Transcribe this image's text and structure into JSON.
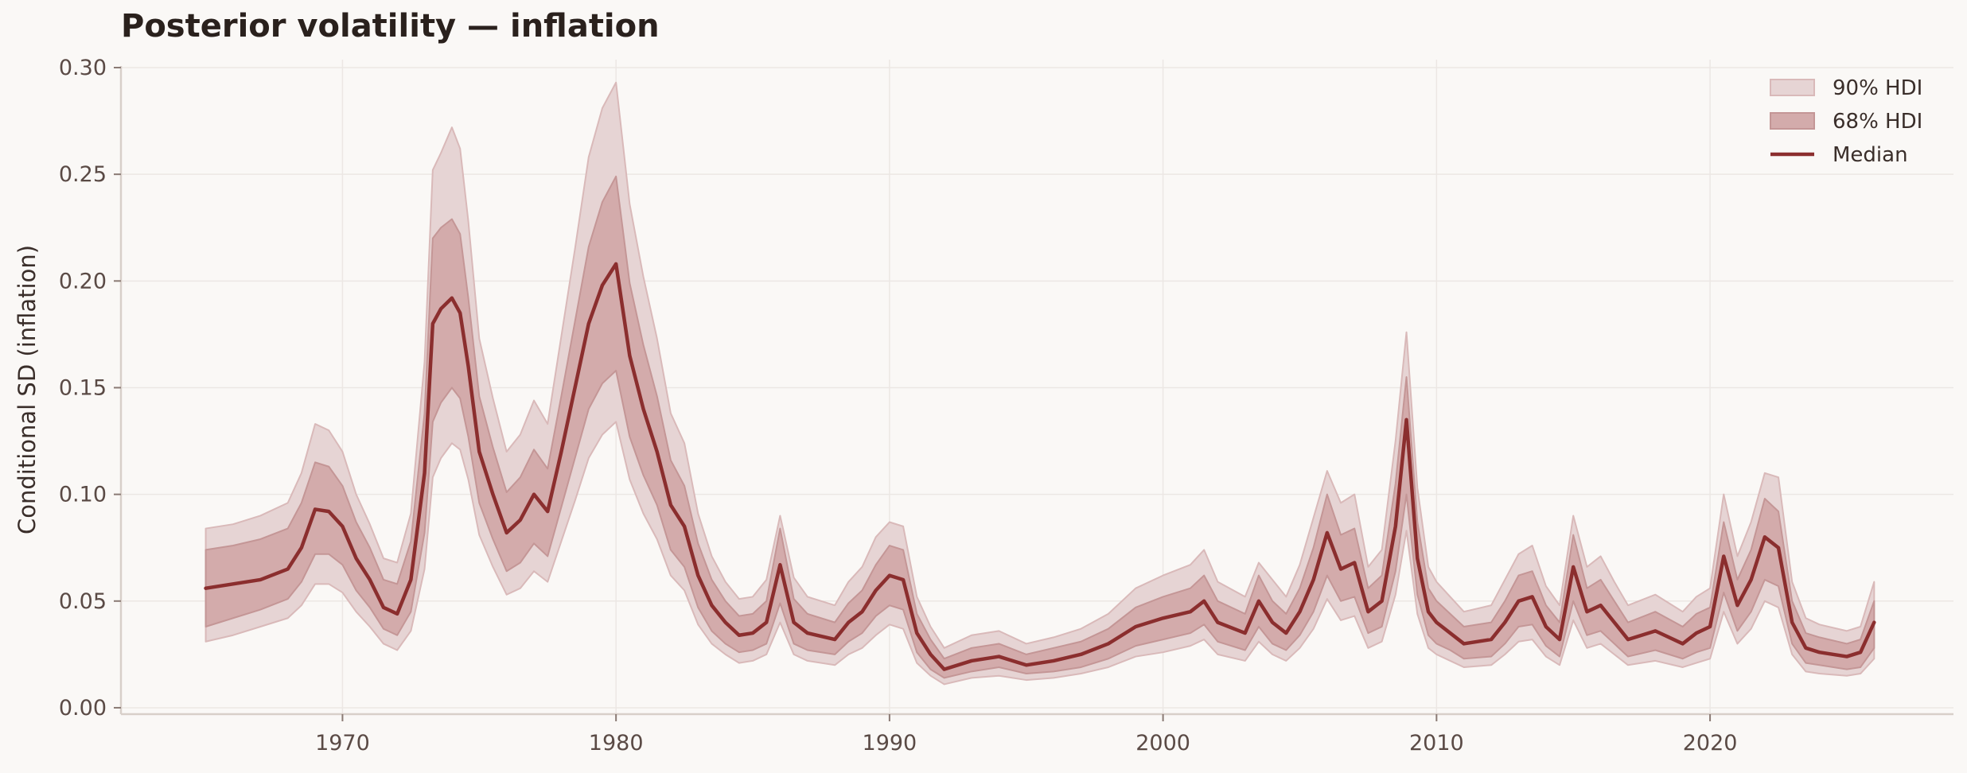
{
  "chart_data": {
    "type": "line",
    "title": "Posterior volatility — inflation",
    "xlabel": "",
    "ylabel": "Conditional SD (inflation)",
    "xlim": [
      1961.9,
      2028.9
    ],
    "ylim": [
      -0.003,
      0.3
    ],
    "x_ticks": [
      1970,
      1980,
      1990,
      2000,
      2010,
      2020
    ],
    "y_ticks": [
      0.0,
      0.05,
      0.1,
      0.15,
      0.2,
      0.25,
      0.3
    ],
    "y_tick_labels": [
      "0.00",
      "0.05",
      "0.10",
      "0.15",
      "0.20",
      "0.25",
      "0.30"
    ],
    "grid": true,
    "legend_position": "top-right",
    "colors": {
      "median": "#8b2e2e",
      "hdi90": "#e6d4d4",
      "hdi68": "#d3abab",
      "grid": "#ece7e4",
      "axis": "#d8cfc9"
    },
    "legend": [
      {
        "label": "90% HDI",
        "kind": "band90"
      },
      {
        "label": "68% HDI",
        "kind": "band68"
      },
      {
        "label": "Median",
        "kind": "line"
      }
    ],
    "x": [
      1965.0,
      1966.0,
      1967.0,
      1968.0,
      1968.5,
      1969.0,
      1969.5,
      1970.0,
      1970.5,
      1971.0,
      1971.5,
      1972.0,
      1972.5,
      1973.0,
      1973.3,
      1973.6,
      1974.0,
      1974.3,
      1974.6,
      1975.0,
      1975.5,
      1976.0,
      1976.5,
      1977.0,
      1977.5,
      1978.0,
      1978.5,
      1979.0,
      1979.5,
      1980.0,
      1980.5,
      1981.0,
      1981.5,
      1982.0,
      1982.5,
      1983.0,
      1983.5,
      1984.0,
      1984.5,
      1985.0,
      1985.5,
      1986.0,
      1986.5,
      1987.0,
      1988.0,
      1988.5,
      1989.0,
      1989.5,
      1990.0,
      1990.5,
      1991.0,
      1991.5,
      1992.0,
      1993.0,
      1994.0,
      1995.0,
      1996.0,
      1997.0,
      1998.0,
      1999.0,
      2000.0,
      2001.0,
      2001.5,
      2002.0,
      2003.0,
      2003.5,
      2004.0,
      2004.5,
      2005.0,
      2005.5,
      2006.0,
      2006.5,
      2007.0,
      2007.5,
      2008.0,
      2008.5,
      2008.9,
      2009.3,
      2009.7,
      2010.0,
      2010.5,
      2011.0,
      2012.0,
      2012.5,
      2013.0,
      2013.5,
      2014.0,
      2014.5,
      2015.0,
      2015.5,
      2016.0,
      2016.5,
      2017.0,
      2018.0,
      2019.0,
      2019.5,
      2020.0,
      2020.5,
      2021.0,
      2021.5,
      2022.0,
      2022.5,
      2023.0,
      2023.5,
      2024.0,
      2025.0,
      2025.5,
      2026.0
    ],
    "series": [
      {
        "name": "Median",
        "values": [
          0.056,
          0.058,
          0.06,
          0.065,
          0.075,
          0.093,
          0.092,
          0.085,
          0.07,
          0.06,
          0.047,
          0.044,
          0.06,
          0.11,
          0.18,
          0.187,
          0.192,
          0.185,
          0.16,
          0.12,
          0.1,
          0.082,
          0.088,
          0.1,
          0.092,
          0.12,
          0.15,
          0.18,
          0.198,
          0.208,
          0.165,
          0.14,
          0.12,
          0.095,
          0.085,
          0.062,
          0.048,
          0.04,
          0.034,
          0.035,
          0.04,
          0.067,
          0.04,
          0.035,
          0.032,
          0.04,
          0.045,
          0.055,
          0.062,
          0.06,
          0.035,
          0.025,
          0.018,
          0.022,
          0.024,
          0.02,
          0.022,
          0.025,
          0.03,
          0.038,
          0.042,
          0.045,
          0.05,
          0.04,
          0.035,
          0.05,
          0.04,
          0.035,
          0.045,
          0.06,
          0.082,
          0.065,
          0.068,
          0.045,
          0.05,
          0.085,
          0.135,
          0.07,
          0.045,
          0.04,
          0.035,
          0.03,
          0.032,
          0.04,
          0.05,
          0.052,
          0.038,
          0.032,
          0.066,
          0.045,
          0.048,
          0.04,
          0.032,
          0.036,
          0.03,
          0.035,
          0.038,
          0.071,
          0.048,
          0.06,
          0.08,
          0.075,
          0.04,
          0.028,
          0.026,
          0.024,
          0.026,
          0.04
        ]
      }
    ],
    "bands": {
      "hdi68_lower": [
        0.038,
        0.042,
        0.046,
        0.051,
        0.059,
        0.072,
        0.072,
        0.067,
        0.055,
        0.047,
        0.037,
        0.034,
        0.045,
        0.082,
        0.134,
        0.143,
        0.15,
        0.145,
        0.127,
        0.096,
        0.079,
        0.064,
        0.068,
        0.077,
        0.071,
        0.094,
        0.117,
        0.14,
        0.152,
        0.158,
        0.127,
        0.109,
        0.095,
        0.074,
        0.066,
        0.047,
        0.036,
        0.03,
        0.026,
        0.027,
        0.03,
        0.049,
        0.03,
        0.027,
        0.025,
        0.031,
        0.035,
        0.043,
        0.048,
        0.046,
        0.026,
        0.018,
        0.014,
        0.017,
        0.019,
        0.016,
        0.017,
        0.019,
        0.023,
        0.029,
        0.032,
        0.035,
        0.039,
        0.031,
        0.027,
        0.038,
        0.03,
        0.027,
        0.034,
        0.045,
        0.062,
        0.05,
        0.052,
        0.035,
        0.038,
        0.064,
        0.1,
        0.053,
        0.034,
        0.03,
        0.027,
        0.023,
        0.024,
        0.03,
        0.038,
        0.039,
        0.029,
        0.024,
        0.05,
        0.034,
        0.036,
        0.03,
        0.024,
        0.027,
        0.023,
        0.026,
        0.028,
        0.054,
        0.036,
        0.045,
        0.06,
        0.057,
        0.03,
        0.021,
        0.02,
        0.018,
        0.019,
        0.028
      ],
      "hdi68_upper": [
        0.074,
        0.076,
        0.079,
        0.084,
        0.096,
        0.115,
        0.113,
        0.104,
        0.087,
        0.075,
        0.06,
        0.058,
        0.078,
        0.138,
        0.22,
        0.225,
        0.229,
        0.222,
        0.192,
        0.146,
        0.122,
        0.101,
        0.108,
        0.121,
        0.112,
        0.146,
        0.181,
        0.216,
        0.237,
        0.249,
        0.199,
        0.17,
        0.146,
        0.116,
        0.104,
        0.077,
        0.06,
        0.05,
        0.043,
        0.044,
        0.05,
        0.084,
        0.051,
        0.044,
        0.04,
        0.049,
        0.055,
        0.067,
        0.076,
        0.074,
        0.044,
        0.032,
        0.023,
        0.028,
        0.03,
        0.025,
        0.028,
        0.031,
        0.037,
        0.047,
        0.052,
        0.056,
        0.062,
        0.05,
        0.044,
        0.062,
        0.05,
        0.044,
        0.056,
        0.075,
        0.1,
        0.081,
        0.084,
        0.056,
        0.062,
        0.105,
        0.155,
        0.087,
        0.056,
        0.05,
        0.044,
        0.038,
        0.04,
        0.05,
        0.062,
        0.064,
        0.048,
        0.04,
        0.081,
        0.056,
        0.06,
        0.05,
        0.04,
        0.045,
        0.038,
        0.044,
        0.047,
        0.087,
        0.06,
        0.074,
        0.098,
        0.092,
        0.05,
        0.035,
        0.033,
        0.03,
        0.032,
        0.05
      ],
      "hdi90_lower": [
        0.031,
        0.034,
        0.038,
        0.042,
        0.048,
        0.058,
        0.058,
        0.054,
        0.045,
        0.038,
        0.03,
        0.027,
        0.036,
        0.065,
        0.108,
        0.117,
        0.124,
        0.121,
        0.107,
        0.081,
        0.066,
        0.053,
        0.056,
        0.064,
        0.059,
        0.078,
        0.097,
        0.117,
        0.128,
        0.134,
        0.107,
        0.091,
        0.079,
        0.062,
        0.055,
        0.039,
        0.03,
        0.025,
        0.021,
        0.022,
        0.025,
        0.04,
        0.025,
        0.022,
        0.02,
        0.025,
        0.028,
        0.034,
        0.039,
        0.037,
        0.021,
        0.015,
        0.011,
        0.014,
        0.015,
        0.013,
        0.014,
        0.016,
        0.019,
        0.024,
        0.026,
        0.029,
        0.032,
        0.025,
        0.022,
        0.031,
        0.025,
        0.022,
        0.028,
        0.037,
        0.051,
        0.041,
        0.043,
        0.028,
        0.031,
        0.053,
        0.083,
        0.044,
        0.028,
        0.025,
        0.022,
        0.019,
        0.02,
        0.025,
        0.031,
        0.032,
        0.024,
        0.02,
        0.041,
        0.028,
        0.03,
        0.025,
        0.02,
        0.022,
        0.019,
        0.021,
        0.023,
        0.045,
        0.03,
        0.037,
        0.05,
        0.047,
        0.025,
        0.017,
        0.016,
        0.015,
        0.016,
        0.023
      ],
      "hdi90_upper": [
        0.084,
        0.086,
        0.09,
        0.096,
        0.11,
        0.133,
        0.13,
        0.12,
        0.1,
        0.086,
        0.07,
        0.068,
        0.091,
        0.162,
        0.252,
        0.26,
        0.272,
        0.262,
        0.228,
        0.173,
        0.145,
        0.12,
        0.128,
        0.144,
        0.133,
        0.174,
        0.215,
        0.258,
        0.281,
        0.293,
        0.236,
        0.202,
        0.173,
        0.138,
        0.124,
        0.091,
        0.071,
        0.059,
        0.051,
        0.052,
        0.06,
        0.09,
        0.061,
        0.052,
        0.048,
        0.059,
        0.066,
        0.08,
        0.087,
        0.085,
        0.052,
        0.038,
        0.028,
        0.034,
        0.036,
        0.03,
        0.033,
        0.037,
        0.044,
        0.056,
        0.062,
        0.067,
        0.074,
        0.059,
        0.052,
        0.068,
        0.06,
        0.052,
        0.067,
        0.089,
        0.111,
        0.096,
        0.1,
        0.066,
        0.074,
        0.125,
        0.176,
        0.103,
        0.066,
        0.059,
        0.052,
        0.045,
        0.048,
        0.06,
        0.072,
        0.076,
        0.057,
        0.048,
        0.09,
        0.066,
        0.071,
        0.059,
        0.048,
        0.053,
        0.045,
        0.052,
        0.056,
        0.1,
        0.071,
        0.087,
        0.11,
        0.108,
        0.059,
        0.042,
        0.039,
        0.036,
        0.038,
        0.059
      ]
    }
  }
}
